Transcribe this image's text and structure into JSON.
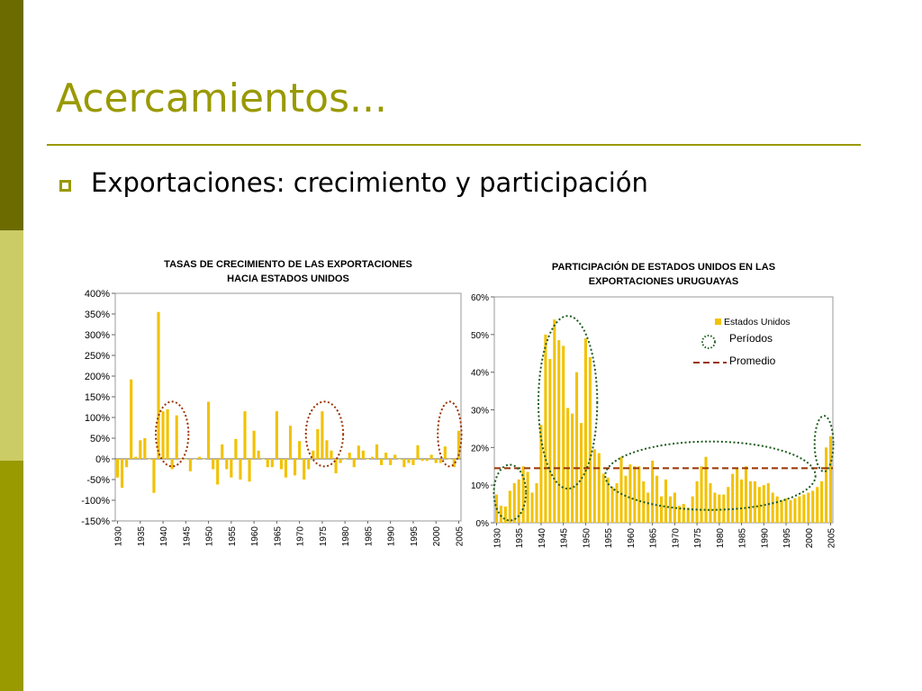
{
  "slide": {
    "title": "Acercamientos...",
    "bullet": "Exportaciones: crecimiento y participación",
    "colors": {
      "accent": "#999900",
      "dark_band": "#6b6b00",
      "light_band": "#cccc66"
    }
  },
  "chart_data": [
    {
      "type": "bar",
      "title": "TASAS DE CRECIMIENTO DE LAS EXPORTACIONES HACIA ESTADOS UNIDOS",
      "title_lines": [
        "TASAS DE CRECIMIENTO DE LAS EXPORTACIONES",
        "HACIA ESTADOS UNIDOS"
      ],
      "xlabel": "",
      "ylabel": "",
      "ylim": [
        -150,
        400
      ],
      "y_ticks": [
        400,
        350,
        300,
        250,
        200,
        150,
        100,
        50,
        0,
        -50,
        -100,
        -150
      ],
      "y_tick_labels": [
        "400%",
        "350%",
        "300%",
        "250%",
        "200%",
        "150%",
        "100%",
        "50%",
        "0%",
        "-50%",
        "-100%",
        "-150%"
      ],
      "x_tick_labels": [
        "1930",
        "1935",
        "1940",
        "1945",
        "1950",
        "1955",
        "1960",
        "1965",
        "1970",
        "1975",
        "1980",
        "1985",
        "1990",
        "1995",
        "2000",
        "2005"
      ],
      "years": [
        1930,
        2005
      ],
      "bar_color": "#f2c200",
      "series": [
        {
          "values": [
            -45,
            -70,
            -20,
            192,
            5,
            45,
            50,
            0,
            -82,
            355,
            115,
            120,
            -25,
            105,
            0,
            0,
            -30,
            0,
            5,
            0,
            138,
            -25,
            -62,
            35,
            -25,
            -45,
            48,
            -50,
            115,
            -55,
            68,
            20,
            0,
            -20,
            -20,
            115,
            -25,
            -45,
            80,
            -40,
            43,
            -50,
            -25,
            20,
            72,
            115,
            45,
            20,
            -35,
            -10,
            0,
            15,
            -20,
            32,
            20,
            0,
            5,
            35,
            -15,
            15,
            -15,
            10,
            0,
            -20,
            -10,
            -15,
            33,
            -5,
            -5,
            10,
            -10,
            -10,
            30,
            0,
            -20,
            68,
            140,
            20,
            30
          ]
        }
      ],
      "annotations": {
        "ellipses": [
          {
            "label": "Períodos",
            "years": [
              1939,
              1945
            ],
            "color": "#993300"
          },
          {
            "label": "Períodos",
            "years": [
              1972,
              1979
            ],
            "color": "#993300"
          },
          {
            "label": "Períodos",
            "years": [
              2001,
              2005
            ],
            "color": "#993300"
          }
        ]
      }
    },
    {
      "type": "bar",
      "title": "PARTICIPACIÓN DE ESTADOS UNIDOS EN LAS EXPORTACIONES URUGUAYAS",
      "title_lines": [
        "PARTICIPACIÓN DE ESTADOS UNIDOS EN LAS",
        "EXPORTACIONES URUGUAYAS"
      ],
      "xlabel": "",
      "ylabel": "",
      "ylim": [
        0,
        60
      ],
      "y_ticks": [
        60,
        50,
        40,
        30,
        20,
        10,
        0
      ],
      "y_tick_labels": [
        "60%",
        "50%",
        "40%",
        "30%",
        "20%",
        "10%",
        "0%"
      ],
      "x_tick_labels": [
        "1930",
        "1935",
        "1940",
        "1945",
        "1950",
        "1955",
        "1960",
        "1965",
        "1970",
        "1975",
        "1980",
        "1985",
        "1990",
        "1995",
        "2000",
        "2005"
      ],
      "years": [
        1930,
        2005
      ],
      "bar_color": "#f2c200",
      "series": [
        {
          "name": "Estados Unidos",
          "values": [
            7.5,
            4.5,
            4.3,
            8.5,
            10.5,
            11.5,
            15,
            13.5,
            8,
            10.5,
            26,
            50,
            43.5,
            54,
            48.5,
            47,
            30.5,
            29,
            40,
            26.5,
            49,
            44,
            19.5,
            18.5,
            13,
            12,
            9.5,
            10.5,
            17.5,
            12.5,
            15.5,
            15,
            15,
            11,
            8,
            16.5,
            12.5,
            7,
            11.5,
            7,
            8,
            4.5,
            5,
            4,
            7,
            11,
            15,
            17.5,
            10.5,
            8,
            7.5,
            7.5,
            9.5,
            13,
            14.5,
            11.5,
            15,
            11,
            11,
            9.5,
            10,
            10.5,
            8,
            7,
            6,
            6.5,
            6,
            6.5,
            7,
            7.5,
            8,
            8.5,
            9.5,
            11,
            20,
            23
          ]
        }
      ],
      "average": {
        "label": "Promedio",
        "value": 14.5,
        "color": "#993300"
      },
      "legend": {
        "position": "top-right",
        "items": [
          {
            "label": "Estados Unidos",
            "kind": "bar",
            "color": "#f2c200"
          },
          {
            "label": "Períodos",
            "kind": "dotted-circle",
            "color": "#1f5b1f"
          },
          {
            "label": "Promedio",
            "kind": "dashed-line",
            "color": "#993300"
          }
        ]
      },
      "annotations": {
        "ellipses": [
          {
            "label": "Períodos",
            "years": [
              1930,
              1936
            ],
            "color": "#1f5b1f"
          },
          {
            "label": "Períodos",
            "years": [
              1940,
              1952
            ],
            "color": "#1f5b1f"
          },
          {
            "label": "Períodos",
            "years": [
              1955,
              2001
            ],
            "color": "#1f5b1f"
          },
          {
            "label": "Períodos",
            "years": [
              2002,
              2005
            ],
            "color": "#1f5b1f"
          }
        ]
      }
    }
  ]
}
